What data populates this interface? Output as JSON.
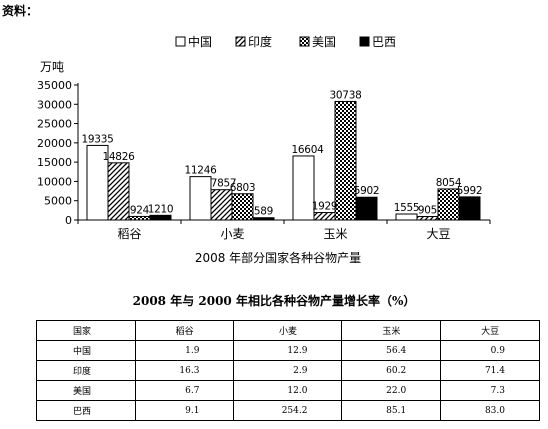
{
  "header": {
    "label": "资料："
  },
  "chart_data": {
    "type": "bar",
    "title": "2008 年部分国家各种谷物产量",
    "ylabel": "万吨",
    "ylim": [
      0,
      35000
    ],
    "yticks": [
      "0",
      "5000",
      "10000",
      "15000",
      "20000",
      "25000",
      "30000",
      "35000"
    ],
    "categories": [
      "稻谷",
      "小麦",
      "玉米",
      "大豆"
    ],
    "legend_position": "top",
    "series": [
      {
        "name": "中国",
        "pattern": "white",
        "values": [
          19335,
          11246,
          16604,
          1555
        ]
      },
      {
        "name": "印度",
        "pattern": "diagonal",
        "values": [
          14826,
          7857,
          1929,
          905
        ]
      },
      {
        "name": "美国",
        "pattern": "dots",
        "values": [
          924,
          6803,
          30738,
          8054
        ]
      },
      {
        "name": "巴西",
        "pattern": "black",
        "values": [
          1210,
          589,
          5902,
          5992
        ]
      }
    ],
    "data_labels": [
      [
        "19335",
        "11246",
        "16604",
        "1555"
      ],
      [
        "14826",
        "7857",
        "1929",
        "905"
      ],
      [
        "924",
        "6803",
        "30738",
        "8054"
      ],
      [
        "1210",
        "589",
        "5902",
        "5992"
      ]
    ]
  },
  "growth_table": {
    "title": "2008 年与 2000 年相比各种谷物产量增长率（%）",
    "headers": [
      "国家",
      "稻谷",
      "小麦",
      "玉米",
      "大豆"
    ],
    "rows": [
      [
        "中国",
        "1.9",
        "12.9",
        "56.4",
        "0.9"
      ],
      [
        "印度",
        "16.3",
        "2.9",
        "60.2",
        "71.4"
      ],
      [
        "美国",
        "6.7",
        "12.0",
        "22.0",
        "7.3"
      ],
      [
        "巴西",
        "9.1",
        "254.2",
        "85.1",
        "83.0"
      ]
    ]
  }
}
